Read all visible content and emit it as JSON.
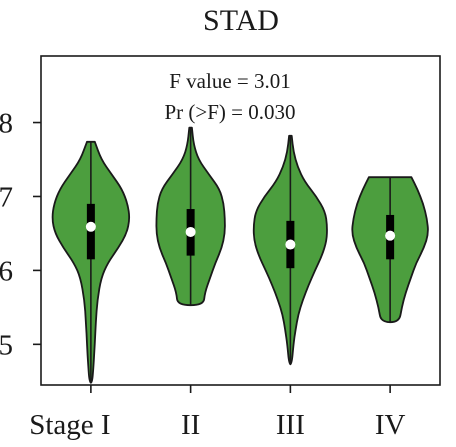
{
  "chart_data": {
    "type": "violin",
    "title": "STAD",
    "xlabel": "",
    "ylabel": "",
    "categories": [
      "Stage I",
      "II",
      "III",
      "IV"
    ],
    "ylim": [
      4.45,
      8.9
    ],
    "yticks": [
      5,
      6,
      7,
      8
    ],
    "ytick_labels": [
      "5",
      "6",
      "7",
      "8"
    ],
    "annotations": [
      "F value = 3.01",
      "Pr (>F) = 0.030"
    ],
    "fill_color": "#4c9e3e",
    "edge_color": "#1a1a1a",
    "median_color": "#ffffff",
    "grid": false,
    "series": [
      {
        "min": 4.48,
        "q1": 6.15,
        "median": 6.59,
        "q3": 6.9,
        "max": 7.74,
        "profile": [
          [
            7.74,
            0.15
          ],
          [
            7.5,
            0.4
          ],
          [
            7.3,
            0.8
          ],
          [
            7.1,
            1.2
          ],
          [
            6.9,
            1.42
          ],
          [
            6.7,
            1.5
          ],
          [
            6.5,
            1.38
          ],
          [
            6.3,
            1.05
          ],
          [
            6.1,
            0.65
          ],
          [
            5.9,
            0.4
          ],
          [
            5.6,
            0.25
          ],
          [
            5.3,
            0.19
          ],
          [
            5.0,
            0.15
          ],
          [
            4.7,
            0.1
          ],
          [
            4.48,
            0.05
          ]
        ]
      },
      {
        "min": 5.53,
        "q1": 6.2,
        "median": 6.52,
        "q3": 6.83,
        "max": 7.93,
        "profile": [
          [
            7.93,
            0.05
          ],
          [
            7.7,
            0.12
          ],
          [
            7.5,
            0.3
          ],
          [
            7.3,
            0.7
          ],
          [
            7.1,
            1.12
          ],
          [
            6.9,
            1.28
          ],
          [
            6.7,
            1.32
          ],
          [
            6.5,
            1.32
          ],
          [
            6.3,
            1.2
          ],
          [
            6.1,
            0.95
          ],
          [
            5.9,
            0.75
          ],
          [
            5.7,
            0.55
          ],
          [
            5.53,
            0.5
          ]
        ]
      },
      {
        "min": 4.73,
        "q1": 6.03,
        "median": 6.35,
        "q3": 6.67,
        "max": 7.82,
        "profile": [
          [
            7.82,
            0.05
          ],
          [
            7.6,
            0.12
          ],
          [
            7.4,
            0.28
          ],
          [
            7.2,
            0.55
          ],
          [
            7.0,
            1.0
          ],
          [
            6.8,
            1.34
          ],
          [
            6.6,
            1.42
          ],
          [
            6.4,
            1.4
          ],
          [
            6.2,
            1.22
          ],
          [
            6.0,
            0.95
          ],
          [
            5.8,
            0.7
          ],
          [
            5.6,
            0.48
          ],
          [
            5.4,
            0.3
          ],
          [
            5.2,
            0.2
          ],
          [
            5.0,
            0.12
          ],
          [
            4.73,
            0.05
          ]
        ]
      },
      {
        "min": 5.3,
        "q1": 6.15,
        "median": 6.47,
        "q3": 6.75,
        "max": 7.26,
        "profile": [
          [
            7.26,
            0.82
          ],
          [
            7.1,
            1.05
          ],
          [
            6.9,
            1.28
          ],
          [
            6.7,
            1.42
          ],
          [
            6.5,
            1.48
          ],
          [
            6.3,
            1.3
          ],
          [
            6.1,
            1.0
          ],
          [
            5.9,
            0.8
          ],
          [
            5.7,
            0.6
          ],
          [
            5.5,
            0.45
          ],
          [
            5.3,
            0.35
          ]
        ]
      }
    ]
  }
}
